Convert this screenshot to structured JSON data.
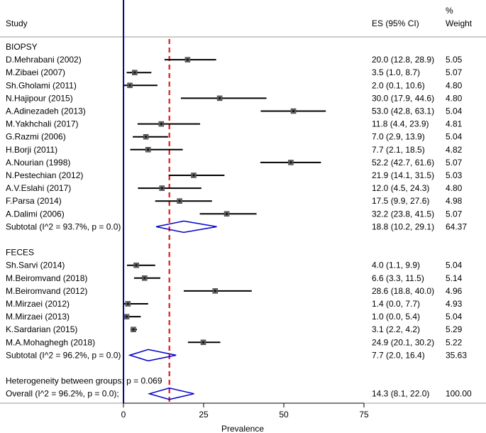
{
  "headers": {
    "study": "Study",
    "es": "ES (95% CI)",
    "weight_line1": "%",
    "weight_line2": "Weight"
  },
  "chart_data": {
    "type": "forest",
    "xlabel": "Prevalence",
    "xticks": [
      0,
      25,
      50,
      75
    ],
    "xlim": [
      0,
      75
    ],
    "null_line": 0,
    "overall_line": 14.3,
    "groups": [
      {
        "name": "BIOPSY",
        "studies": [
          {
            "label": "D.Mehrabani (2002)",
            "es": 20.0,
            "lo": 12.8,
            "hi": 28.9,
            "es_text": "20.0 (12.8, 28.9)",
            "weight": "5.05"
          },
          {
            "label": "M.Zibaei (2007)",
            "es": 3.5,
            "lo": 1.0,
            "hi": 8.7,
            "es_text": "3.5 (1.0, 8.7)",
            "weight": "5.07"
          },
          {
            "label": "Sh.Gholami (2011)",
            "es": 2.0,
            "lo": 0.1,
            "hi": 10.6,
            "es_text": "2.0 (0.1, 10.6)",
            "weight": "4.80"
          },
          {
            "label": "N.Hajipour (2015)",
            "es": 30.0,
            "lo": 17.9,
            "hi": 44.6,
            "es_text": "30.0 (17.9, 44.6)",
            "weight": "4.80"
          },
          {
            "label": "A.Adinezadeh (2013)",
            "es": 53.0,
            "lo": 42.8,
            "hi": 63.1,
            "es_text": "53.0 (42.8, 63.1)",
            "weight": "5.04"
          },
          {
            "label": "M.Yakhchali (2017)",
            "es": 11.8,
            "lo": 4.4,
            "hi": 23.9,
            "es_text": "11.8 (4.4, 23.9)",
            "weight": "4.81"
          },
          {
            "label": "G.Razmi (2006)",
            "es": 7.0,
            "lo": 2.9,
            "hi": 13.9,
            "es_text": "7.0 (2.9, 13.9)",
            "weight": "5.04"
          },
          {
            "label": "H.Borji (2011)",
            "es": 7.7,
            "lo": 2.1,
            "hi": 18.5,
            "es_text": "7.7 (2.1, 18.5)",
            "weight": "4.82"
          },
          {
            "label": "A.Nourian (1998)",
            "es": 52.2,
            "lo": 42.7,
            "hi": 61.6,
            "es_text": "52.2 (42.7, 61.6)",
            "weight": "5.07"
          },
          {
            "label": "N.Pestechian (2012)",
            "es": 21.9,
            "lo": 14.1,
            "hi": 31.5,
            "es_text": "21.9 (14.1, 31.5)",
            "weight": "5.03"
          },
          {
            "label": "A.V.Eslahi (2017)",
            "es": 12.0,
            "lo": 4.5,
            "hi": 24.3,
            "es_text": "12.0 (4.5, 24.3)",
            "weight": "4.80"
          },
          {
            "label": "F.Parsa (2014)",
            "es": 17.5,
            "lo": 9.9,
            "hi": 27.6,
            "es_text": "17.5 (9.9, 27.6)",
            "weight": "4.98"
          },
          {
            "label": "A.Dalimi (2006)",
            "es": 32.2,
            "lo": 23.8,
            "hi": 41.5,
            "es_text": "32.2 (23.8, 41.5)",
            "weight": "5.07"
          }
        ],
        "subtotal": {
          "label": "Subtotal  (I^2 = 93.7%, p = 0.0)",
          "es": 18.8,
          "lo": 10.2,
          "hi": 29.1,
          "es_text": "18.8 (10.2, 29.1)",
          "weight": "64.37"
        }
      },
      {
        "name": "FECES",
        "studies": [
          {
            "label": "Sh.Sarvi (2014)",
            "es": 4.0,
            "lo": 1.1,
            "hi": 9.9,
            "es_text": "4.0 (1.1, 9.9)",
            "weight": "5.04"
          },
          {
            "label": "M.Beiromvand (2018)",
            "es": 6.6,
            "lo": 3.3,
            "hi": 11.5,
            "es_text": "6.6 (3.3, 11.5)",
            "weight": "5.14"
          },
          {
            "label": "M.Beiromvand (2012)",
            "es": 28.6,
            "lo": 18.8,
            "hi": 40.0,
            "es_text": "28.6 (18.8, 40.0)",
            "weight": "4.96"
          },
          {
            "label": "M.Mirzaei (2012)",
            "es": 1.4,
            "lo": 0.0,
            "hi": 7.7,
            "es_text": "1.4 (0.0, 7.7)",
            "weight": "4.93"
          },
          {
            "label": "M.Mirzaei (2013)",
            "es": 1.0,
            "lo": 0.0,
            "hi": 5.4,
            "es_text": "1.0 (0.0, 5.4)",
            "weight": "5.04"
          },
          {
            "label": "K.Sardarian (2015)",
            "es": 3.1,
            "lo": 2.2,
            "hi": 4.2,
            "es_text": "3.1 (2.2, 4.2)",
            "weight": "5.29"
          },
          {
            "label": "M.A.Mohaghegh (2018)",
            "es": 24.9,
            "lo": 20.1,
            "hi": 30.2,
            "es_text": "24.9 (20.1, 30.2)",
            "weight": "5.22"
          }
        ],
        "subtotal": {
          "label": "Subtotal  (I^2 = 96.2%, p = 0.0)",
          "es": 7.7,
          "lo": 2.0,
          "hi": 16.4,
          "es_text": "7.7 (2.0, 16.4)",
          "weight": "35.63"
        }
      }
    ],
    "heterogeneity": "Heterogeneity between groups: p = 0.069",
    "overall": {
      "label": "Overall  (I^2 = 96.2%, p = 0.0);",
      "es": 14.3,
      "lo": 8.1,
      "hi": 22.0,
      "es_text": "14.3 (8.1, 22.0)",
      "weight": "100.00"
    },
    "colors": {
      "null_line": "#0000cc",
      "overall_line": "#ff0000",
      "diamond": "#0000cc",
      "marker": "#666666",
      "ci": "#000000"
    }
  }
}
